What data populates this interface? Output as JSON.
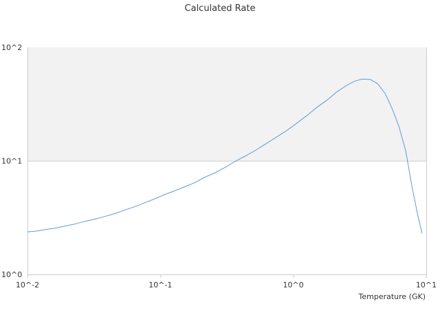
{
  "chart_data": {
    "type": "line",
    "title": "Calculated Rate",
    "xlabel": "Temperature (GK)",
    "ylabel": "",
    "xscale": "log",
    "yscale": "log",
    "xlim": [
      0.01,
      10
    ],
    "ylim": [
      1,
      100
    ],
    "x_tick_labels": [
      "10^-2",
      "10^-1",
      "10^0",
      "10^1"
    ],
    "y_tick_labels": [
      "10^0",
      "10^1",
      "10^2"
    ],
    "grid": false,
    "legend": "none",
    "band": {
      "y_range": [
        10,
        100
      ],
      "color": "#f2f2f2"
    },
    "colors": {
      "line": "#5b9bd5",
      "axis": "#cccccc",
      "band": "#f2f2f2"
    },
    "series": [
      {
        "x": [
          0.01,
          0.0115,
          0.0135,
          0.016,
          0.019,
          0.0225,
          0.027,
          0.032,
          0.038,
          0.045,
          0.053,
          0.063,
          0.075,
          0.089,
          0.105,
          0.125,
          0.15,
          0.18,
          0.215,
          0.26,
          0.31,
          0.37,
          0.44,
          0.52,
          0.62,
          0.74,
          0.88,
          1.05,
          1.25,
          1.5,
          1.8,
          2.1,
          2.5,
          2.9,
          3.3,
          3.8,
          4.3,
          4.9,
          5.5,
          6.2,
          7.0,
          7.8,
          8.6,
          9.3
        ],
        "y": [
          2.37,
          2.4,
          2.48,
          2.55,
          2.66,
          2.77,
          2.93,
          3.06,
          3.23,
          3.42,
          3.66,
          3.92,
          4.24,
          4.59,
          4.99,
          5.39,
          5.86,
          6.4,
          7.16,
          7.89,
          8.81,
          10.0,
          11.1,
          12.4,
          14.1,
          16.1,
          18.3,
          21.3,
          24.8,
          29.5,
          34.4,
          40.1,
          46.0,
          50.4,
          52.5,
          52.1,
          47.9,
          39.3,
          29.4,
          20.4,
          12.3,
          6.0,
          3.4,
          2.3
        ]
      }
    ]
  }
}
